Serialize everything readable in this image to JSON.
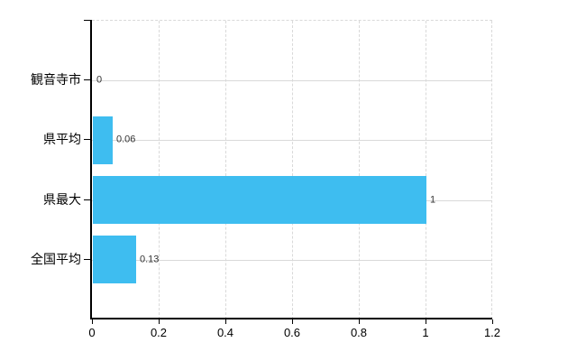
{
  "chart": {
    "accent_color": "#3ebdf0",
    "grid_color": "#d9d9d9",
    "axis_color": "#000000",
    "value_label_color": "#333333",
    "background_color": "#ffffff"
  },
  "chart_data": {
    "type": "bar",
    "orientation": "horizontal",
    "title": "",
    "xlabel": "",
    "ylabel": "",
    "categories": [
      "観音寺市",
      "県平均",
      "県最大",
      "全国平均"
    ],
    "values": [
      0,
      0.06,
      1,
      0.13
    ],
    "value_labels": [
      "0",
      "0.06",
      "1",
      "0.13"
    ],
    "xlim": [
      0,
      1.2
    ],
    "xticks": [
      0,
      0.2,
      0.4,
      0.6,
      0.8,
      1,
      1.2
    ],
    "xtick_labels": [
      "0",
      "0.2",
      "0.4",
      "0.6",
      "0.8",
      "1",
      "1.2"
    ],
    "grid": true,
    "legend": false
  }
}
